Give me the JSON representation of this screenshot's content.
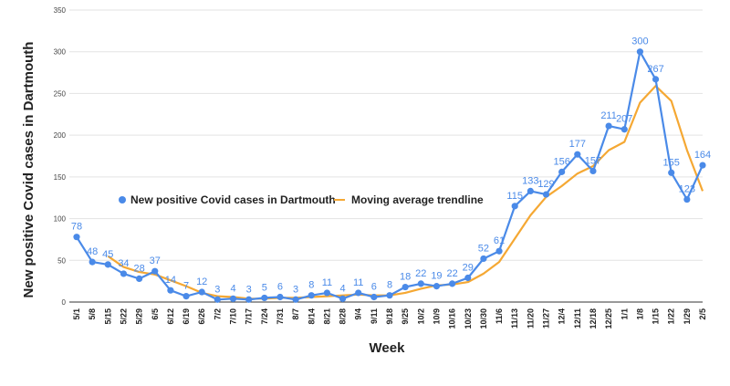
{
  "chart_data": {
    "type": "line",
    "title": "",
    "xlabel": "Week",
    "ylabel": "New positive Covid cases in Dartmouth",
    "ylim": [
      0,
      350
    ],
    "yticks": [
      0,
      50,
      100,
      150,
      200,
      250,
      300,
      350
    ],
    "grid": "horizontal",
    "legend_position": "center-left",
    "categories": [
      "5/1",
      "5/8",
      "5/15",
      "5/22",
      "5/29",
      "6/5",
      "6/12",
      "6/19",
      "6/26",
      "7/2",
      "7/10",
      "7/17",
      "7/24",
      "7/31",
      "8/7",
      "8/14",
      "8/21",
      "8/28",
      "9/4",
      "9/11",
      "9/18",
      "9/25",
      "10/2",
      "10/9",
      "10/16",
      "10/23",
      "10/30",
      "11/6",
      "11/13",
      "11/20",
      "11/27",
      "12/4",
      "12/11",
      "12/18",
      "12/25",
      "1/1",
      "1/8",
      "1/15",
      "1/22",
      "1/29",
      "2/5"
    ],
    "series": [
      {
        "name": "New positive Covid cases in Dartmouth",
        "color": "#4a8ae8",
        "marker": "circle",
        "values": [
          78,
          48,
          45,
          34,
          28,
          37,
          14,
          7,
          12,
          3,
          4,
          3,
          5,
          6,
          3,
          8,
          11,
          4,
          11,
          6,
          8,
          18,
          22,
          19,
          22,
          29,
          52,
          61,
          115,
          133,
          129,
          156,
          177,
          157,
          211,
          207,
          300,
          267,
          155,
          123,
          164
        ],
        "labels": [
          "78",
          "48",
          "45",
          "34",
          "28",
          "37",
          "14",
          "7",
          "12",
          "3",
          "4",
          "3",
          "5",
          "6",
          "3",
          "8",
          "11",
          "4",
          "11",
          "6",
          "8",
          "18",
          "22",
          "19",
          "22",
          "29",
          "52",
          "61",
          "115",
          "133",
          "129",
          "156",
          "177",
          "157",
          "211",
          "207",
          "300",
          "267",
          "155",
          "123",
          "164"
        ]
      },
      {
        "name": "Moving average trendline",
        "color": "#f5a833",
        "marker": "none",
        "values": [
          null,
          null,
          55,
          42,
          36,
          33,
          26,
          19,
          11,
          7,
          6,
          4,
          4,
          5,
          5,
          6,
          7,
          8,
          9,
          8,
          8,
          11,
          16,
          20,
          21,
          24,
          34,
          48,
          76,
          104,
          126,
          139,
          154,
          163,
          182,
          192,
          239,
          259,
          241,
          182,
          133
        ]
      }
    ]
  }
}
